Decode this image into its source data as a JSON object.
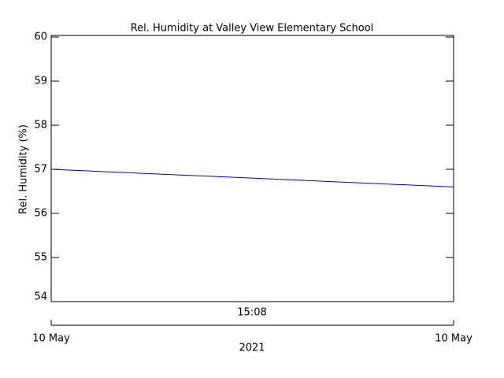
{
  "chart_data": {
    "type": "line",
    "title": "Rel. Humidity at Valley View Elementary School",
    "ylabel": "Rel. Humidity (%)",
    "categories": [
      "10 May",
      "10 May"
    ],
    "values": [
      57.0,
      56.6
    ],
    "color": "#0000cc",
    "time_label": "15:08",
    "xlabel": "2021",
    "ylim": [
      54,
      60
    ],
    "yticks": [
      54,
      55,
      56,
      57,
      58,
      59,
      60
    ]
  }
}
